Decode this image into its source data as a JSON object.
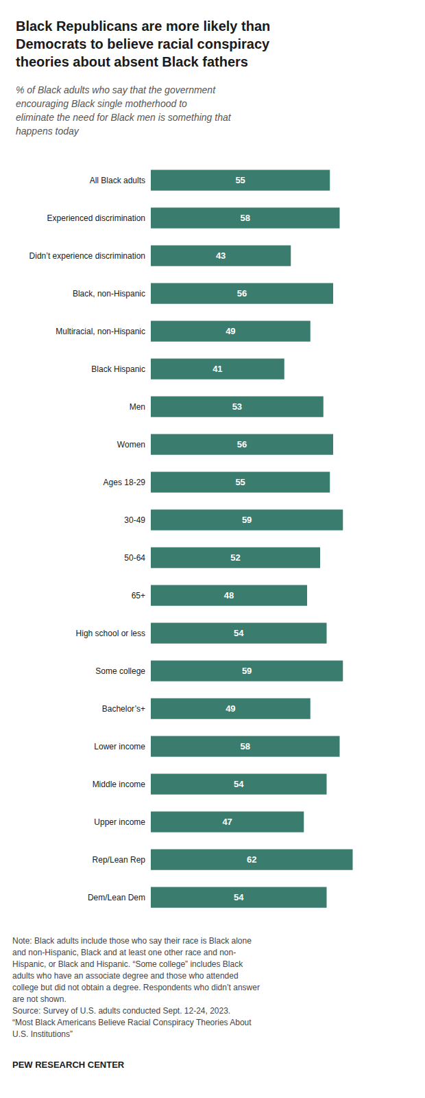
{
  "chart_data": {
    "type": "bar",
    "orientation": "horizontal",
    "title": "Black Republicans are more likely than\nDemocrats to believe racial conspiracy\ntheories about absent Black fathers",
    "subtitle": "% of Black adults who say that the government\nencouraging Black single motherhood to\neliminate the need for Black men is something that\nhappens today",
    "categories": [
      "All Black adults",
      "Experienced discrimination",
      "Didn’t experience discrimination",
      "Black, non-Hispanic",
      "Multiracial, non-Hispanic",
      "Black Hispanic",
      "Men",
      "Women",
      "Ages 18-29",
      "30-49",
      "50-64",
      "65+",
      "High school or less",
      "Some college",
      "Bachelor’s+",
      "Lower income",
      "Middle income",
      "Upper income",
      "Rep/Lean Rep",
      "Dem/Lean Dem"
    ],
    "values": [
      55,
      58,
      43,
      56,
      49,
      41,
      53,
      56,
      55,
      59,
      52,
      48,
      54,
      59,
      49,
      58,
      54,
      47,
      62,
      54
    ],
    "color": "#3a7d6e",
    "xlim": [
      0,
      80
    ],
    "grid": false,
    "data_labels": true,
    "tick_labels": "y",
    "annotations": [
      "Note: Black adults include those who say their race is Black alone\nand non-Hispanic, Black and at least one other race and non-\nHispanic, or Black and Hispanic. “Some college” includes Black\nadults who have an associate degree and those who attended\ncollege but did not obtain a degree. Respondents who didn’t answer\nare not shown.\nSource: Survey of U.S. adults conducted Sept. 12-24, 2023.\n“Most Black Americans Believe Racial Conspiracy Theories About\nU.S. Institutions”",
      "PEW RESEARCH CENTER"
    ]
  }
}
